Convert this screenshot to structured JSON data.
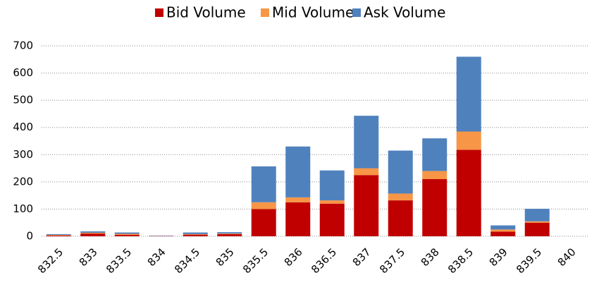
{
  "chart_data": {
    "type": "stacked_bar",
    "categories": [
      "832.5",
      "833",
      "833.5",
      "834",
      "834.5",
      "835",
      "835.5",
      "836",
      "836.5",
      "837",
      "837.5",
      "838",
      "838.5",
      "839",
      "839.5",
      "840"
    ],
    "series": [
      {
        "name": "Bid Volume",
        "color": "#c00000",
        "values": [
          3,
          10,
          5,
          1,
          6,
          8,
          100,
          125,
          120,
          225,
          132,
          210,
          318,
          17,
          50,
          0
        ]
      },
      {
        "name": "Mid Volume",
        "color": "#f79646",
        "values": [
          2,
          3,
          4,
          0,
          2,
          2,
          25,
          18,
          12,
          25,
          25,
          30,
          67,
          8,
          5,
          0
        ]
      },
      {
        "name": "Ask Volume",
        "color": "#4f81bd",
        "values": [
          3,
          5,
          5,
          1,
          6,
          5,
          132,
          187,
          110,
          193,
          158,
          120,
          275,
          15,
          46,
          0
        ]
      }
    ],
    "ylim": [
      0,
      700
    ],
    "yticks": [
      0,
      100,
      200,
      300,
      400,
      500,
      600,
      700
    ],
    "grid": true,
    "legend": "top"
  }
}
